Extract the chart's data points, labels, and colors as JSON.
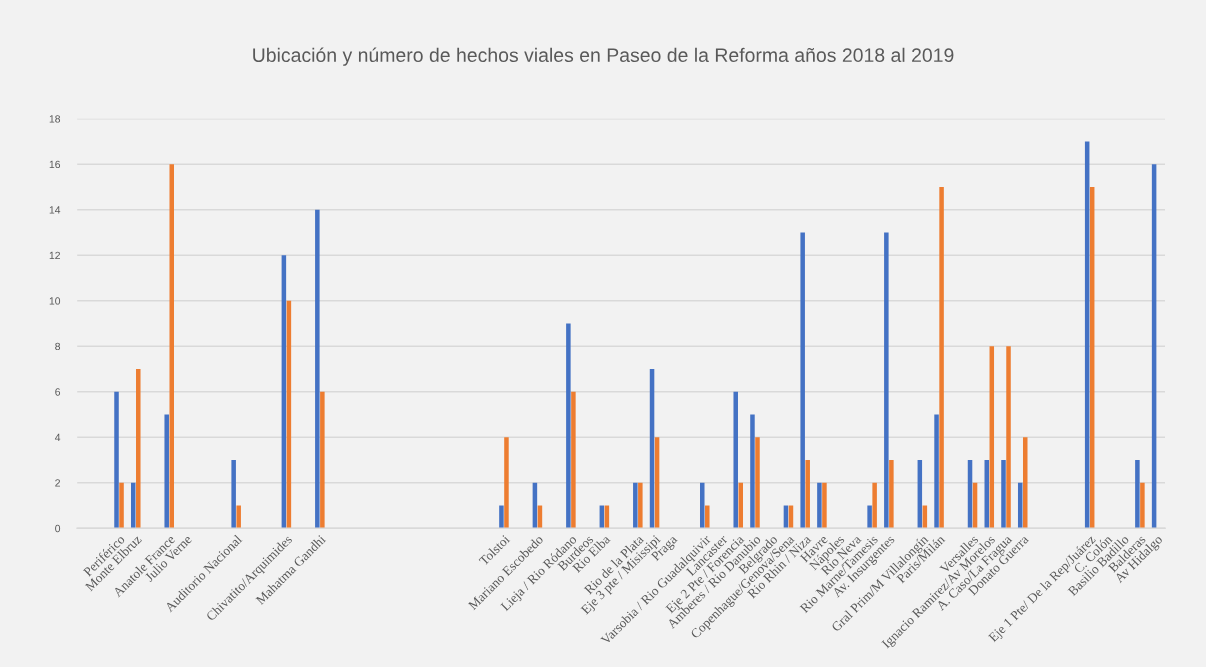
{
  "chart_data": {
    "type": "bar",
    "title": "Ubicación y número de hechos viales en Paseo de la Reforma años 2018 al 2019",
    "categories": [
      null,
      null,
      "Periférico",
      "Monte Elbruz",
      null,
      "Anatole France",
      "Julio Verne",
      null,
      null,
      "Auditorio Nacional",
      null,
      null,
      "Chivatito/Arquimides",
      null,
      "Mahatma Gandhi",
      null,
      null,
      null,
      null,
      null,
      null,
      null,
      null,
      null,
      null,
      "Tolstoi",
      null,
      "Mariano Escobedo",
      null,
      "Lieja / Rio Ródano",
      "Burdeos",
      "Rio Elba",
      null,
      "Rio de la Plata",
      "Eje 3 pte / Misissipi",
      "Praga",
      null,
      "Varsobia / Rio Guadalquivir",
      "Lancaster",
      "Eje 2 Pte / Forencia",
      "Amberes / Rio Danubio",
      "Belgrado",
      "Copenhague/Genova/Sena",
      "Rio Rhin / Niza",
      "Havre",
      "Nápoles",
      "Rio Neva",
      "Rio Marne/Tamesis",
      "Av. Insurgentes",
      null,
      "Gral Prim/M Villalongín",
      "Paris/Milán",
      null,
      "Versalles",
      "Ignacio Ramirez/Av Morelos",
      "A. Caso/La Fragua",
      "Donato Guerra",
      null,
      null,
      null,
      "Eje 1 Pte/ De la Rep/Juárez",
      "C. Colón",
      "Basilio Badillo",
      "Balderas",
      "Av Hidalgo"
    ],
    "series": [
      {
        "color": "#4472c4",
        "values": [
          null,
          null,
          6,
          2,
          null,
          5,
          null,
          null,
          null,
          3,
          null,
          null,
          12,
          null,
          14,
          null,
          null,
          null,
          null,
          null,
          null,
          null,
          null,
          null,
          null,
          1,
          null,
          2,
          null,
          9,
          null,
          1,
          null,
          2,
          7,
          null,
          null,
          2,
          null,
          6,
          5,
          null,
          1,
          13,
          2,
          null,
          null,
          1,
          13,
          null,
          3,
          5,
          null,
          3,
          3,
          3,
          2,
          null,
          null,
          null,
          17,
          null,
          null,
          3,
          16
        ]
      },
      {
        "color": "#ed7d31",
        "values": [
          null,
          null,
          2,
          7,
          null,
          16,
          null,
          null,
          null,
          1,
          null,
          null,
          10,
          null,
          6,
          null,
          null,
          null,
          null,
          null,
          null,
          null,
          null,
          null,
          null,
          4,
          null,
          1,
          null,
          6,
          null,
          1,
          null,
          2,
          4,
          null,
          null,
          1,
          null,
          2,
          4,
          null,
          1,
          3,
          2,
          null,
          null,
          2,
          3,
          null,
          1,
          15,
          null,
          2,
          8,
          8,
          4,
          null,
          null,
          null,
          15,
          null,
          null,
          2,
          null
        ]
      }
    ],
    "ylim": [
      0,
      18
    ],
    "yticks": [
      0,
      2,
      4,
      6,
      8,
      10,
      12,
      14,
      16,
      18
    ],
    "grid": "y"
  }
}
